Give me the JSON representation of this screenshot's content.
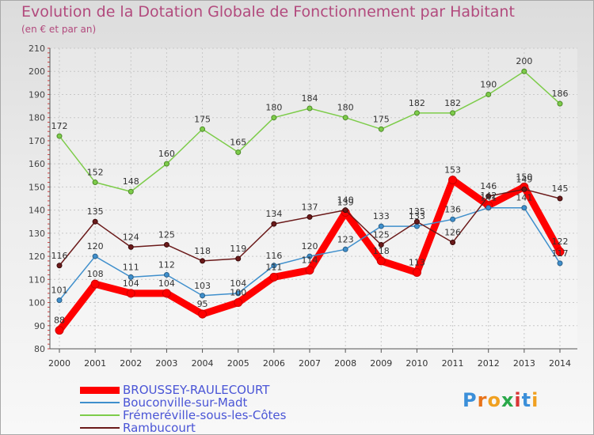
{
  "chart_data": {
    "type": "line",
    "title": "Evolution de la Dotation Globale de Fonctionnement par Habitant",
    "subtitle": "(en € et par an)",
    "xlabel": "",
    "ylabel": "",
    "ylim": [
      80,
      210
    ],
    "yticks": [
      80,
      90,
      100,
      110,
      120,
      130,
      140,
      150,
      160,
      170,
      180,
      190,
      200,
      210
    ],
    "categories": [
      "2000",
      "2001",
      "2002",
      "2003",
      "2004",
      "2005",
      "2006",
      "2007",
      "2008",
      "2009",
      "2010",
      "2011",
      "2012",
      "2013",
      "2014"
    ],
    "grid": true,
    "legend_position": "bottom-left",
    "series": [
      {
        "name": "BROUSSEY-RAULECOURT",
        "color": "#ff0000",
        "values": [
          88,
          108,
          104,
          104,
          95,
          100,
          111,
          114,
          139,
          118,
          113,
          153,
          142,
          150,
          122
        ]
      },
      {
        "name": "Bouconville-sur-Madt",
        "color": "#3f8fcc",
        "values": [
          101,
          120,
          111,
          112,
          103,
          104,
          116,
          120,
          123,
          133,
          133,
          136,
          141,
          141,
          117
        ]
      },
      {
        "name": "Frémeréville-sous-les-Côtes",
        "color": "#7dcc4a",
        "values": [
          172,
          152,
          148,
          160,
          175,
          165,
          180,
          184,
          180,
          175,
          182,
          182,
          190,
          200,
          186
        ]
      },
      {
        "name": "Rambucourt",
        "color": "#6b1a1a",
        "values": [
          116,
          135,
          124,
          125,
          118,
          119,
          134,
          137,
          140,
          125,
          135,
          126,
          146,
          149,
          145
        ]
      }
    ]
  },
  "logo": {
    "text": "Proxiti"
  }
}
